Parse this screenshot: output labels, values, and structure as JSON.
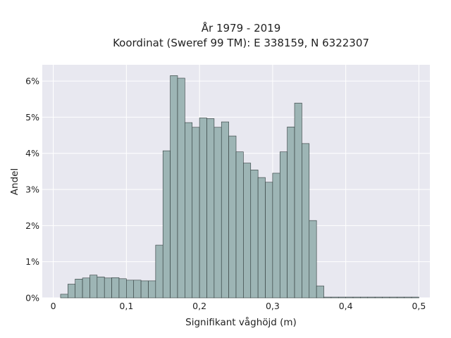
{
  "chart_data": {
    "type": "bar",
    "title_line1": "År 1979 - 2019",
    "title_line2": "Koordinat (Sweref 99 TM): E 338159, N 6322307",
    "xlabel": "Signifikant våghöjd (m)",
    "ylabel": "Andel",
    "xlim": [
      -0.015,
      0.515
    ],
    "ylim": [
      0,
      6.45
    ],
    "grid": true,
    "bin_width": 0.01,
    "bin_start": 0.0,
    "values": [
      0,
      0.1,
      0.38,
      0.52,
      0.55,
      0.63,
      0.58,
      0.55,
      0.56,
      0.53,
      0.49,
      0.49,
      0.47,
      0.47,
      1.46,
      4.07,
      6.15,
      6.08,
      4.85,
      4.72,
      4.98,
      4.96,
      4.72,
      4.87,
      4.48,
      4.04,
      3.73,
      3.54,
      3.33,
      3.2,
      3.45,
      4.04,
      4.73,
      5.39,
      4.27,
      2.14,
      0.33,
      0.02,
      0.02,
      0.02,
      0.02,
      0.02,
      0.02,
      0.02,
      0.02,
      0.02,
      0.02,
      0.02,
      0.02,
      0.02
    ],
    "x_ticks": [
      {
        "value": 0,
        "label": "0"
      },
      {
        "value": 0.1,
        "label": "0,1"
      },
      {
        "value": 0.2,
        "label": "0,2"
      },
      {
        "value": 0.3,
        "label": "0,3"
      },
      {
        "value": 0.4,
        "label": "0,4"
      },
      {
        "value": 0.5,
        "label": "0,5"
      }
    ],
    "y_ticks": [
      {
        "value": 0,
        "label": "0%"
      },
      {
        "value": 1,
        "label": "1%"
      },
      {
        "value": 2,
        "label": "2%"
      },
      {
        "value": 3,
        "label": "3%"
      },
      {
        "value": 4,
        "label": "4%"
      },
      {
        "value": 5,
        "label": "5%"
      },
      {
        "value": 6,
        "label": "6%"
      }
    ],
    "colors": {
      "bar_fill": "#9db5b5",
      "bar_stroke": "#2f3a3a",
      "plot_background": "#e8e8f0",
      "grid": "#ffffff"
    }
  }
}
